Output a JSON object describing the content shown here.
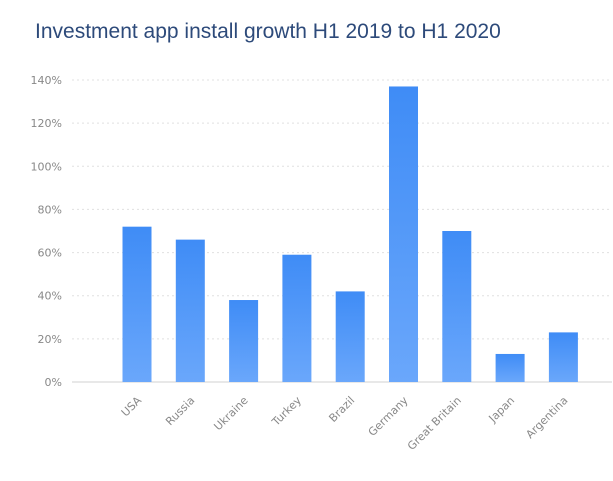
{
  "chart_data": {
    "type": "bar",
    "title": "Investment app install growth H1 2019 to H1 2020",
    "categories": [
      "USA",
      "Russia",
      "Ukraine",
      "Turkey",
      "Brazil",
      "Germany",
      "Great Britain",
      "Japan",
      "Argentina"
    ],
    "values": [
      72,
      66,
      38,
      59,
      42,
      137,
      70,
      13,
      23
    ],
    "unit": "%",
    "ylim": [
      0,
      140
    ],
    "yticks": [
      "0%",
      "20%",
      "40%",
      "60%",
      "80%",
      "100%",
      "120%",
      "140%"
    ],
    "grid": true,
    "legend": "none",
    "colors": {
      "bar_top": "#3f8cf6",
      "bar_bottom": "#6aa7fb",
      "grid": "#e0e0e0",
      "axis": "#d0d0d0"
    }
  }
}
